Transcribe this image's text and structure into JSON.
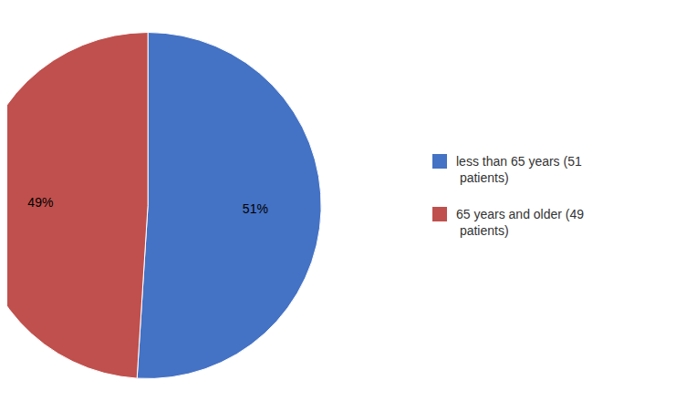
{
  "chart_data": {
    "type": "pie",
    "categories": [
      "less than 65 years (51\n patients)",
      "65 years and older (49\n patients)"
    ],
    "values": [
      51,
      49
    ],
    "value_labels": [
      "51%",
      "49%"
    ],
    "colors": [
      "#4472C4",
      "#C0504D"
    ],
    "data_labels": true,
    "legend": "right"
  }
}
